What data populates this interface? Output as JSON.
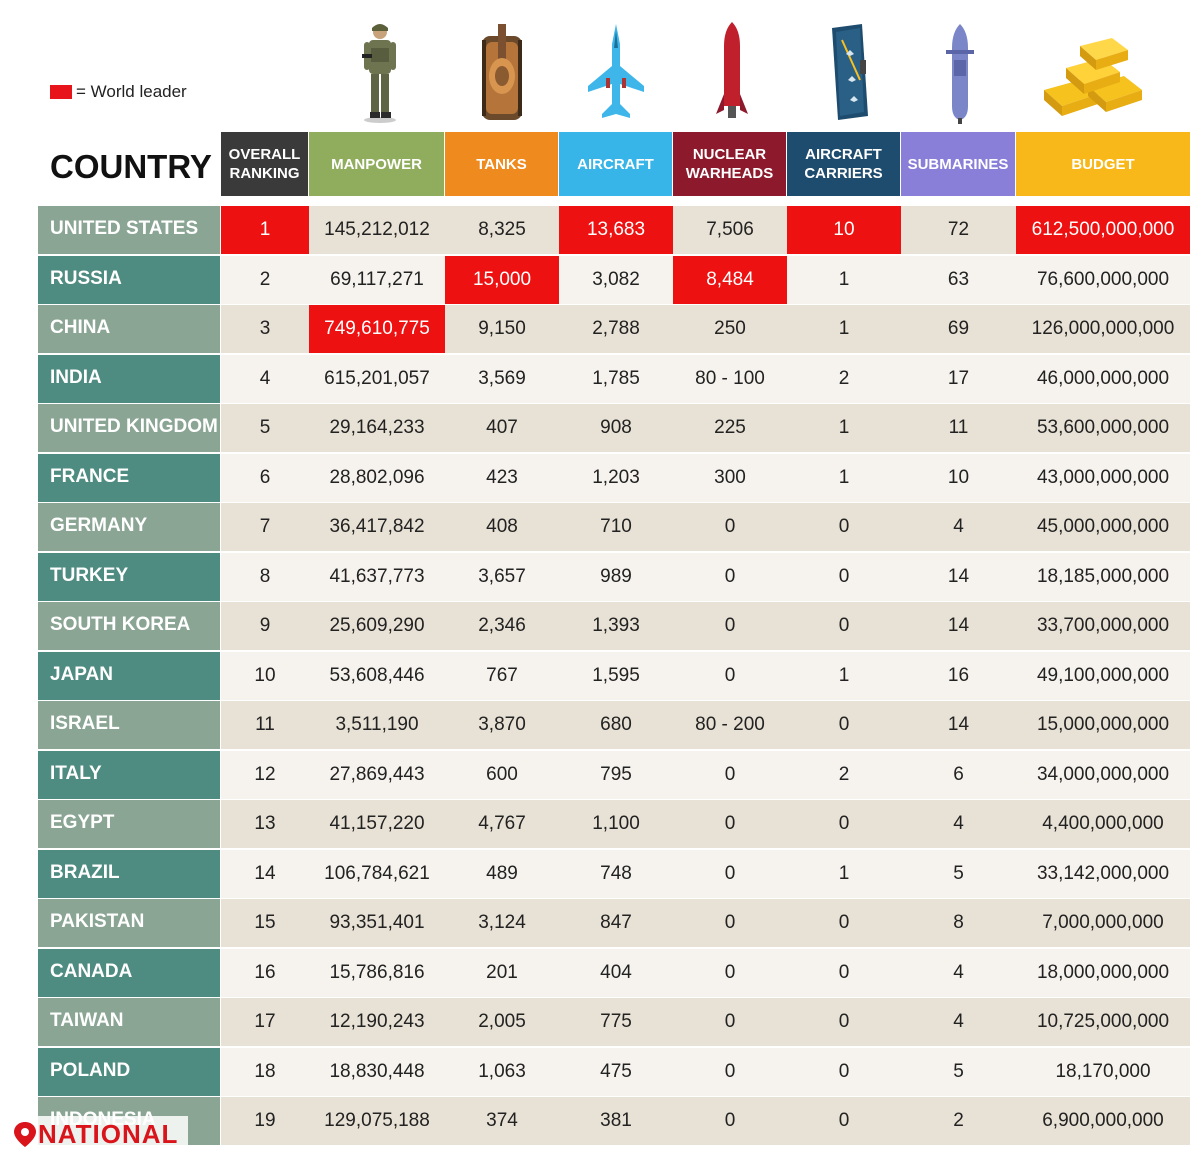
{
  "legend": {
    "label": "= World leader",
    "color": "#e8141b"
  },
  "country_header": "COUNTRY",
  "watermark": "NATIONAL",
  "colors": {
    "ranking": "#3a3a3a",
    "manpower": "#8fad5c",
    "tanks": "#ee8a1e",
    "aircraft": "#37b4e8",
    "nuclear_warheads": "#8c1a2c",
    "aircraft_carriers": "#1e4c6e",
    "submarines": "#8a7fd8",
    "budget": "#f8b81a",
    "leader": "#ee1111",
    "country_light": "#8aa594",
    "country_dark": "#4e8b80"
  },
  "icons": [
    "soldier-icon",
    "tank-icon",
    "fighter-jet-icon",
    "nuclear-warhead-icon",
    "aircraft-carrier-icon",
    "submarine-icon",
    "gold-bars-icon"
  ],
  "chart_data": {
    "type": "table",
    "columns": [
      "OVERALL\nRANKING",
      "MANPOWER",
      "TANKS",
      "AIRCRAFT",
      "NUCLEAR\nWARHEADS",
      "AIRCRAFT\nCARRIERS",
      "SUBMARINES",
      "BUDGET"
    ],
    "rows": [
      {
        "country": "UNITED STATES",
        "values": [
          "1",
          "145,212,012",
          "8,325",
          "13,683",
          "7,506",
          "10",
          "72",
          "612,500,000,000"
        ],
        "leader": [
          0,
          3,
          5,
          7
        ]
      },
      {
        "country": "RUSSIA",
        "values": [
          "2",
          "69,117,271",
          "15,000",
          "3,082",
          "8,484",
          "1",
          "63",
          "76,600,000,000"
        ],
        "leader": [
          2,
          4
        ]
      },
      {
        "country": "CHINA",
        "values": [
          "3",
          "749,610,775",
          "9,150",
          "2,788",
          "250",
          "1",
          "69",
          "126,000,000,000"
        ],
        "leader": [
          1
        ]
      },
      {
        "country": "INDIA",
        "values": [
          "4",
          "615,201,057",
          "3,569",
          "1,785",
          "80 - 100",
          "2",
          "17",
          "46,000,000,000"
        ],
        "leader": []
      },
      {
        "country": "UNITED KINGDOM",
        "values": [
          "5",
          "29,164,233",
          "407",
          "908",
          "225",
          "1",
          "11",
          "53,600,000,000"
        ],
        "leader": []
      },
      {
        "country": "FRANCE",
        "values": [
          "6",
          "28,802,096",
          "423",
          "1,203",
          "300",
          "1",
          "10",
          "43,000,000,000"
        ],
        "leader": []
      },
      {
        "country": "GERMANY",
        "values": [
          "7",
          "36,417,842",
          "408",
          "710",
          "0",
          "0",
          "4",
          "45,000,000,000"
        ],
        "leader": []
      },
      {
        "country": "TURKEY",
        "values": [
          "8",
          "41,637,773",
          "3,657",
          "989",
          "0",
          "0",
          "14",
          "18,185,000,000"
        ],
        "leader": []
      },
      {
        "country": "SOUTH KOREA",
        "values": [
          "9",
          "25,609,290",
          "2,346",
          "1,393",
          "0",
          "0",
          "14",
          "33,700,000,000"
        ],
        "leader": []
      },
      {
        "country": "JAPAN",
        "values": [
          "10",
          "53,608,446",
          "767",
          "1,595",
          "0",
          "1",
          "16",
          "49,100,000,000"
        ],
        "leader": []
      },
      {
        "country": "ISRAEL",
        "values": [
          "11",
          "3,511,190",
          "3,870",
          "680",
          "80 - 200",
          "0",
          "14",
          "15,000,000,000"
        ],
        "leader": []
      },
      {
        "country": "ITALY",
        "values": [
          "12",
          "27,869,443",
          "600",
          "795",
          "0",
          "2",
          "6",
          "34,000,000,000"
        ],
        "leader": []
      },
      {
        "country": "EGYPT",
        "values": [
          "13",
          "41,157,220",
          "4,767",
          "1,100",
          "0",
          "0",
          "4",
          "4,400,000,000"
        ],
        "leader": []
      },
      {
        "country": "BRAZIL",
        "values": [
          "14",
          "106,784,621",
          "489",
          "748",
          "0",
          "1",
          "5",
          "33,142,000,000"
        ],
        "leader": []
      },
      {
        "country": "PAKISTAN",
        "values": [
          "15",
          "93,351,401",
          "3,124",
          "847",
          "0",
          "0",
          "8",
          "7,000,000,000"
        ],
        "leader": []
      },
      {
        "country": "CANADA",
        "values": [
          "16",
          "15,786,816",
          "201",
          "404",
          "0",
          "0",
          "4",
          "18,000,000,000"
        ],
        "leader": []
      },
      {
        "country": "TAIWAN",
        "values": [
          "17",
          "12,190,243",
          "2,005",
          "775",
          "0",
          "0",
          "4",
          "10,725,000,000"
        ],
        "leader": []
      },
      {
        "country": "POLAND",
        "values": [
          "18",
          "18,830,448",
          "1,063",
          "475",
          "0",
          "0",
          "5",
          "18,170,000"
        ],
        "leader": []
      },
      {
        "country": "INDONESIA",
        "values": [
          "19",
          "129,075,188",
          "374",
          "381",
          "0",
          "0",
          "2",
          "6,900,000,000"
        ],
        "leader": []
      }
    ]
  }
}
